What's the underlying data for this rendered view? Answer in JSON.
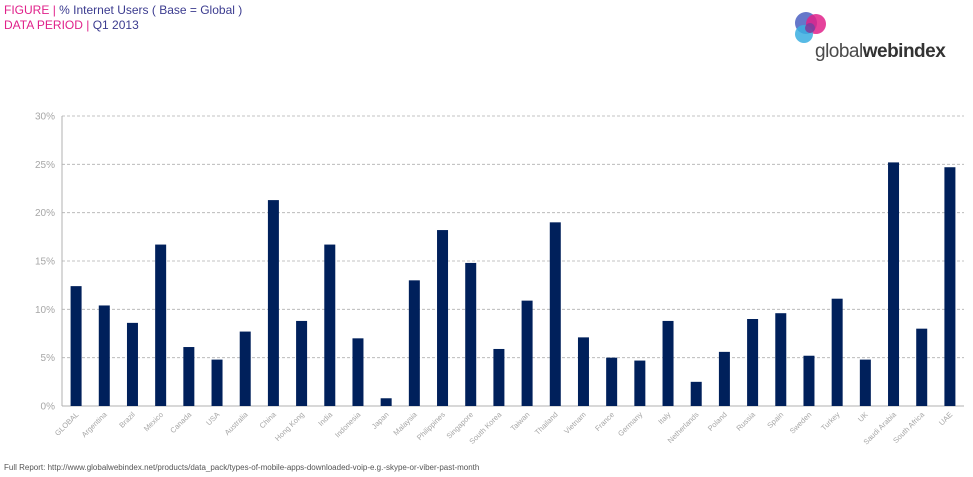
{
  "header": {
    "figure_label": "FIGURE",
    "figure_text": "% Internet  Users  ( Base = Global  )",
    "period_label": "DATA PERIOD",
    "period_text": "Q1 2013"
  },
  "logo": {
    "text_regular": "global",
    "text_bold": "webindex",
    "colors": [
      "#4a5fc1",
      "#e0218a",
      "#3aaee0",
      "#7b3fa0"
    ]
  },
  "footer": {
    "text": "Full Report: http://www.globalwebindex.net/products/data_pack/types-of-mobile-apps-downloaded-voip-e.g.-skype-or-viber-past-month"
  },
  "colors": {
    "bar": "#00205b",
    "grid": "#b0b0b0",
    "axis_text": "#a6a6a6"
  },
  "chart_data": {
    "type": "bar",
    "categories": [
      "GLOBAL",
      "Argentina",
      "Brazil",
      "Mexico",
      "Canada",
      "USA",
      "Australia",
      "China",
      "Hong Kong",
      "India",
      "Indonesia",
      "Japan",
      "Malaysia",
      "Philippines",
      "Singapore",
      "South Korea",
      "Taiwan",
      "Thailand",
      "Vietnam",
      "France",
      "Germany",
      "Italy",
      "Netherlands",
      "Poland",
      "Russia",
      "Spain",
      "Sweden",
      "Turkey",
      "UK",
      "Saudi Arabia",
      "South Africa",
      "UAE"
    ],
    "values": [
      12.4,
      10.4,
      8.6,
      16.7,
      6.1,
      4.8,
      7.7,
      21.3,
      8.8,
      16.7,
      7.0,
      0.8,
      13.0,
      18.2,
      14.8,
      5.9,
      10.9,
      19.0,
      7.1,
      5.0,
      4.7,
      8.8,
      2.5,
      5.6,
      9.0,
      9.6,
      5.2,
      11.1,
      4.8,
      25.2,
      8.0,
      24.7
    ],
    "yticks": [
      "0%",
      "5%",
      "10%",
      "15%",
      "20%",
      "25%",
      "30%"
    ],
    "ylim": [
      0,
      30
    ],
    "grid": true,
    "legend": "none"
  }
}
